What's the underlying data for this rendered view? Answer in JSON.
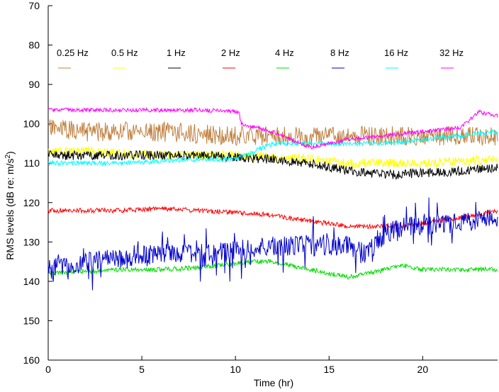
{
  "chart_data": {
    "type": "line",
    "title": "",
    "xlabel": "Time (hr)",
    "ylabel_main": "RMS levels (dB re: m/s",
    "ylabel_sup": "2",
    "ylabel_close": ")",
    "xlim": [
      0,
      24
    ],
    "ylim": [
      160,
      70
    ],
    "y_inverted": true,
    "xticks": [
      0,
      5,
      10,
      15,
      20
    ],
    "yticks": [
      70,
      80,
      90,
      100,
      110,
      120,
      130,
      140,
      150,
      160
    ],
    "grid": false,
    "legend": "top, inside, single row",
    "series": [
      {
        "name": "0.25 Hz",
        "color": "#c08040",
        "points": [
          [
            0,
            101
          ],
          [
            2,
            102
          ],
          [
            4,
            102
          ],
          [
            6,
            102
          ],
          [
            8,
            102.5
          ],
          [
            10,
            103
          ],
          [
            12,
            103
          ],
          [
            14,
            103.5
          ],
          [
            16,
            103
          ],
          [
            18,
            103
          ],
          [
            20,
            103
          ],
          [
            22,
            103
          ],
          [
            24,
            103
          ]
        ],
        "noise": 2.5,
        "seed": 11
      },
      {
        "name": "0.5 Hz",
        "color": "#ffff00",
        "points": [
          [
            0,
            107
          ],
          [
            2,
            107
          ],
          [
            4,
            107.5
          ],
          [
            6,
            108
          ],
          [
            8,
            108
          ],
          [
            10,
            108
          ],
          [
            12,
            108.5
          ],
          [
            14,
            109
          ],
          [
            16,
            110
          ],
          [
            18,
            110
          ],
          [
            20,
            110
          ],
          [
            22,
            109.5
          ],
          [
            24,
            109
          ]
        ],
        "noise": 1.2,
        "seed": 23
      },
      {
        "name": "1 Hz",
        "color": "#000000",
        "points": [
          [
            0,
            108
          ],
          [
            2,
            108
          ],
          [
            4,
            108
          ],
          [
            6,
            108
          ],
          [
            8,
            108
          ],
          [
            10,
            108.5
          ],
          [
            12,
            109
          ],
          [
            14,
            110
          ],
          [
            16,
            112
          ],
          [
            18,
            113
          ],
          [
            20,
            112.5
          ],
          [
            22,
            112
          ],
          [
            24,
            111
          ]
        ],
        "noise": 1.2,
        "seed": 37
      },
      {
        "name": "2 Hz",
        "color": "#ff0000",
        "points": [
          [
            0,
            122
          ],
          [
            2,
            122
          ],
          [
            4,
            122
          ],
          [
            6,
            121.5
          ],
          [
            8,
            122
          ],
          [
            10,
            122.5
          ],
          [
            11.5,
            123
          ],
          [
            13,
            124
          ],
          [
            14.5,
            125
          ],
          [
            16,
            126
          ],
          [
            17.5,
            126
          ],
          [
            19,
            126
          ],
          [
            21,
            124.5
          ],
          [
            22.5,
            123.5
          ],
          [
            24,
            122
          ]
        ],
        "noise": 0.6,
        "seed": 41
      },
      {
        "name": "4 Hz",
        "color": "#00dd00",
        "points": [
          [
            0,
            138
          ],
          [
            2,
            137.5
          ],
          [
            4,
            137
          ],
          [
            6,
            137
          ],
          [
            8,
            136.5
          ],
          [
            10,
            135.5
          ],
          [
            11,
            135
          ],
          [
            12,
            135
          ],
          [
            13,
            136
          ],
          [
            14,
            137
          ],
          [
            15,
            138
          ],
          [
            16,
            139
          ],
          [
            17,
            138
          ],
          [
            18,
            137
          ],
          [
            19,
            136
          ],
          [
            20,
            137
          ],
          [
            22,
            137
          ],
          [
            24,
            137
          ]
        ],
        "noise": 0.6,
        "seed": 53
      },
      {
        "name": "8 Hz",
        "color": "#0000cc",
        "points": [
          [
            0,
            137
          ],
          [
            2,
            135
          ],
          [
            4,
            134
          ],
          [
            6,
            133
          ],
          [
            8,
            133
          ],
          [
            10,
            132
          ],
          [
            12,
            131
          ],
          [
            14,
            131
          ],
          [
            16,
            131
          ],
          [
            17,
            133
          ],
          [
            18,
            128
          ],
          [
            19,
            126
          ],
          [
            20,
            126
          ],
          [
            22,
            125
          ],
          [
            24,
            124
          ]
        ],
        "noise": 2.5,
        "spikes": 6,
        "seed": 67
      },
      {
        "name": "16 Hz",
        "color": "#00ffff",
        "points": [
          [
            0,
            110
          ],
          [
            2,
            110
          ],
          [
            4,
            110
          ],
          [
            6,
            109.5
          ],
          [
            8,
            109
          ],
          [
            10,
            109
          ],
          [
            10.5,
            108
          ],
          [
            11.5,
            106
          ],
          [
            12,
            105
          ],
          [
            14,
            105
          ],
          [
            16,
            105
          ],
          [
            18,
            105
          ],
          [
            20,
            104
          ],
          [
            22,
            103
          ],
          [
            24,
            102
          ]
        ],
        "noise": 0.6,
        "seed": 79
      },
      {
        "name": "32 Hz",
        "color": "#ff00ff",
        "points": [
          [
            0,
            96.5
          ],
          [
            2,
            96.5
          ],
          [
            4,
            96.5
          ],
          [
            6,
            96.5
          ],
          [
            8,
            96.5
          ],
          [
            10,
            96.8
          ],
          [
            10.2,
            97
          ],
          [
            10.3,
            100
          ],
          [
            12,
            102
          ],
          [
            14,
            106
          ],
          [
            16,
            104
          ],
          [
            18,
            103
          ],
          [
            20,
            102
          ],
          [
            22,
            101
          ],
          [
            23,
            97
          ],
          [
            24,
            98
          ]
        ],
        "noise": 0.5,
        "seed": 97
      }
    ]
  }
}
